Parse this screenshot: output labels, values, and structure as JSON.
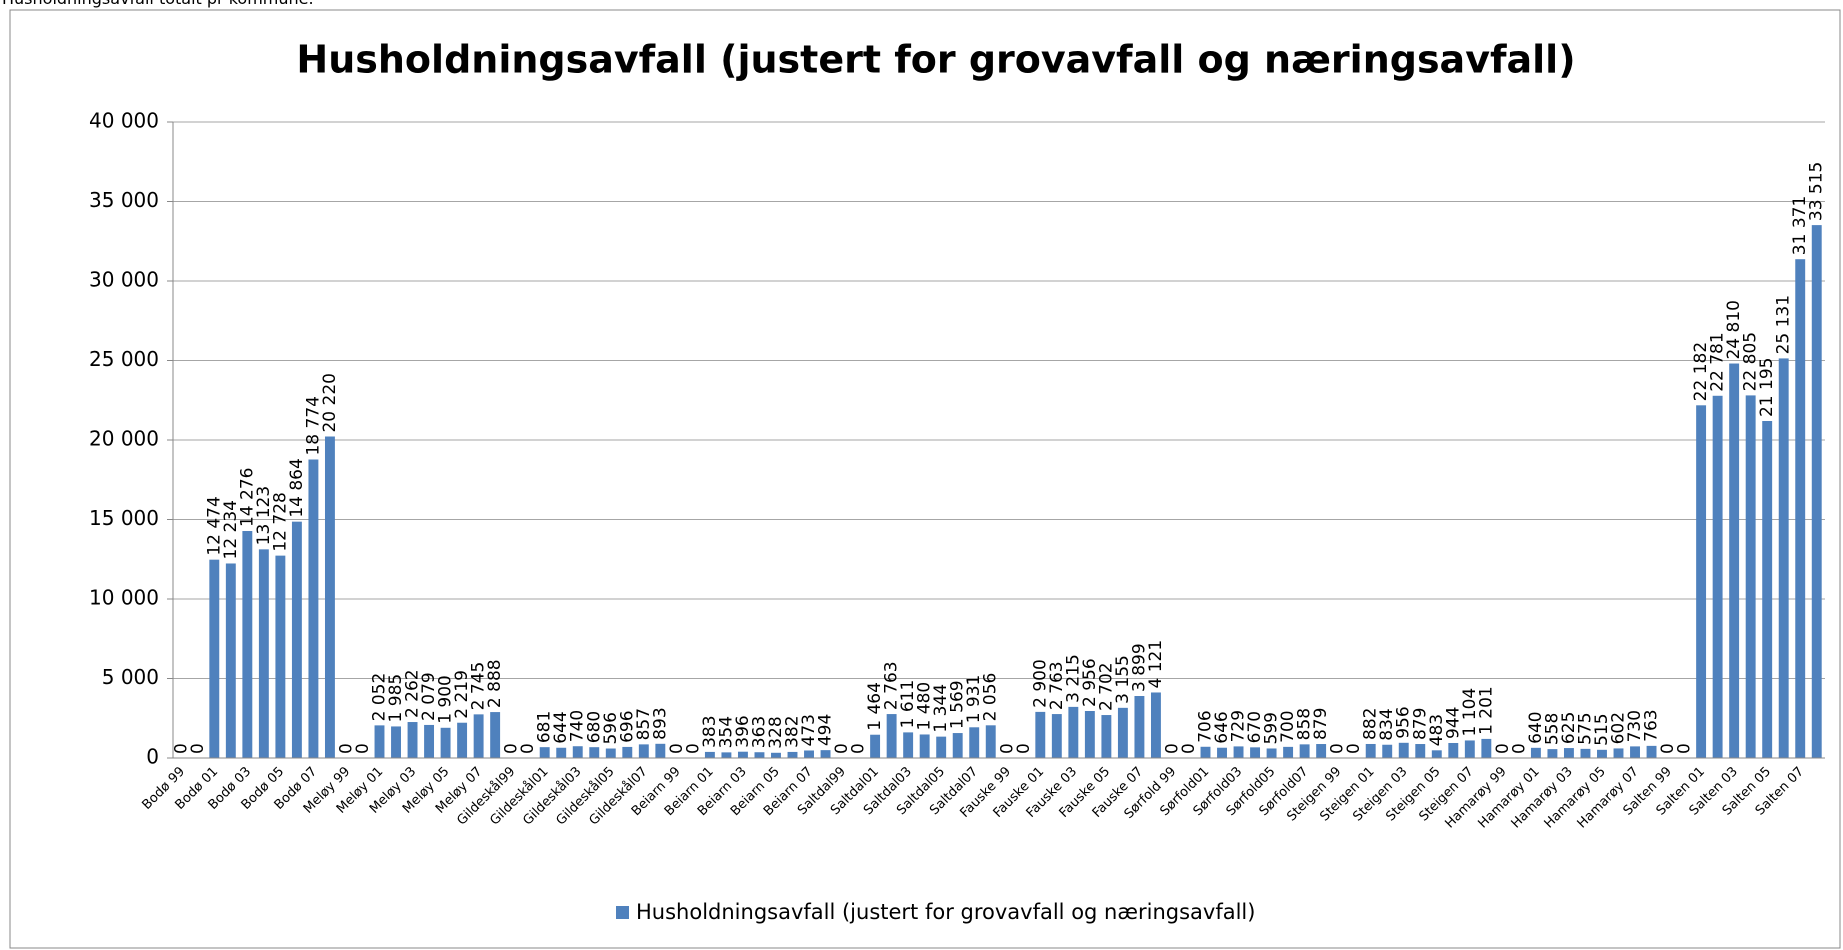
{
  "page_caption": "Husholdningsavfall totalt pr kommune.",
  "chart_data": {
    "type": "bar",
    "title": "Husholdningsavfall (justert for grovavfall og næringsavfall)",
    "categories": [
      "Bodø 99",
      null,
      "Bodø 01",
      null,
      "Bodø 03",
      null,
      "Bodø 05",
      null,
      "Bodø 07",
      null,
      "Meløy 99",
      null,
      "Meløy 01",
      null,
      "Meløy 03",
      null,
      "Meløy 05",
      null,
      "Meløy 07",
      null,
      "Gildeskål99",
      null,
      "Gildeskål01",
      null,
      "Gildeskål03",
      null,
      "Gildeskål05",
      null,
      "Gildeskål07",
      null,
      "Beiarn 99",
      null,
      "Beiarn 01",
      null,
      "Beiarn 03",
      null,
      "Beiarn 05",
      null,
      "Beiarn 07",
      null,
      "Saltdal99",
      null,
      "Saltdal01",
      null,
      "Saltdal03",
      null,
      "Saltdal05",
      null,
      "Saltdal07",
      null,
      "Fauske 99",
      null,
      "Fauske 01",
      null,
      "Fauske 03",
      null,
      "Fauske 05",
      null,
      "Fauske 07",
      null,
      "Sørfold 99",
      null,
      "Sørfold01",
      null,
      "Sørfold03",
      null,
      "Sørfold05",
      null,
      "Sørfold07",
      null,
      "Steigen 99",
      null,
      "Steigen 01",
      null,
      "Steigen 03",
      null,
      "Steigen 05",
      null,
      "Steigen 07",
      null,
      "Hamarøy 99",
      null,
      "Hamarøy 01",
      null,
      "Hamarøy 03",
      null,
      "Hamarøy 05",
      null,
      "Hamarøy 07",
      null,
      "Salten 99",
      null,
      "Salten 01",
      null,
      "Salten 03",
      null,
      "Salten 05",
      null,
      "Salten 07",
      null
    ],
    "series": [
      {
        "name": "Husholdningsavfall (justert for grovavfall og næringsavfall)",
        "color": "#4f81bd",
        "values": [
          0,
          0,
          12474,
          12234,
          14276,
          13123,
          12728,
          14864,
          18774,
          20220,
          0,
          0,
          2052,
          1985,
          2262,
          2079,
          1900,
          2219,
          2745,
          2888,
          0,
          0,
          681,
          644,
          740,
          680,
          596,
          696,
          857,
          893,
          0,
          0,
          383,
          354,
          396,
          363,
          328,
          382,
          473,
          494,
          0,
          0,
          1464,
          2763,
          1611,
          1480,
          1344,
          1569,
          1931,
          2056,
          0,
          0,
          2900,
          2763,
          3215,
          2956,
          2702,
          3155,
          3899,
          4121,
          0,
          0,
          706,
          646,
          729,
          670,
          599,
          700,
          858,
          879,
          0,
          0,
          882,
          834,
          956,
          879,
          483,
          944,
          1104,
          1201,
          0,
          0,
          640,
          558,
          625,
          575,
          515,
          602,
          730,
          763,
          0,
          0,
          22182,
          22781,
          24810,
          22805,
          21195,
          25131,
          31371,
          33515
        ],
        "value_labels": [
          "0",
          "0",
          "12 474",
          "12 234",
          "14 276",
          "13 123",
          "12 728",
          "14 864",
          "18 774",
          "20 220",
          "0",
          "0",
          "2 052",
          "1 985",
          "2 262",
          "2 079",
          "1 900",
          "2 219",
          "2 745",
          "2 888",
          "0",
          "0",
          "681",
          "644",
          "740",
          "680",
          "596",
          "696",
          "857",
          "893",
          "0",
          "0",
          "383",
          "354",
          "396",
          "363",
          "328",
          "382",
          "473",
          "494",
          "0",
          "0",
          "1 464",
          "2 763",
          "1 611",
          "1 480",
          "1 344",
          "1 569",
          "1 931",
          "2 056",
          "0",
          "0",
          "2 900",
          "2 763",
          "3 215",
          "2 956",
          "2 702",
          "3 155",
          "3 899",
          "4 121",
          "0",
          "0",
          "706",
          "646",
          "729",
          "670",
          "599",
          "700",
          "858",
          "879",
          "0",
          "0",
          "882",
          "834",
          "956",
          "879",
          "483",
          "944",
          "1 104",
          "1 201",
          "0",
          "0",
          "640",
          "558",
          "625",
          "575",
          "515",
          "602",
          "730",
          "763",
          "0",
          "0",
          "22 182",
          "22 781",
          "24 810",
          "22 805",
          "21 195",
          "25 131",
          "31 371",
          "33 515"
        ]
      }
    ],
    "ylim": [
      0,
      40000
    ],
    "yticks": [
      0,
      {
        "value": 5000,
        "label": "5 000"
      },
      {
        "value": 10000,
        "label": "10 000"
      },
      {
        "value": 15000,
        "label": "15 000"
      },
      {
        "value": 20000,
        "label": "20 000"
      },
      {
        "value": 25000,
        "label": "25 000"
      },
      {
        "value": 30000,
        "label": "30 000"
      },
      {
        "value": 35000,
        "label": "35 000"
      },
      {
        "value": 40000,
        "label": "40 000"
      }
    ],
    "grid": true,
    "legend": "bottom"
  }
}
